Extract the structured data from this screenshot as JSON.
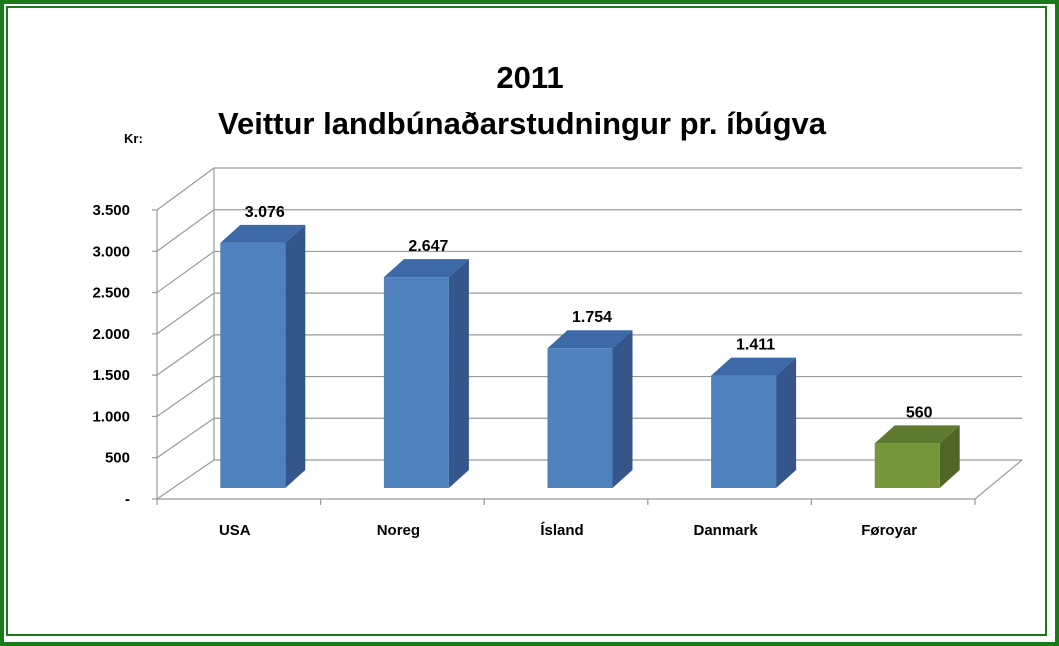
{
  "chart_data": {
    "type": "bar",
    "title": "2011",
    "subtitle": "Veittur landbúnaðarstudningur pr. íbúgva",
    "ylabel": "Kr:",
    "ylim": [
      0,
      3500
    ],
    "yticks": [
      {
        "value": 0,
        "label": "-"
      },
      {
        "value": 500,
        "label": "500"
      },
      {
        "value": 1000,
        "label": "1.000"
      },
      {
        "value": 1500,
        "label": "1.500"
      },
      {
        "value": 2000,
        "label": "2.000"
      },
      {
        "value": 2500,
        "label": "2.500"
      },
      {
        "value": 3000,
        "label": "3.000"
      },
      {
        "value": 3500,
        "label": "3.500"
      }
    ],
    "grid": true,
    "bars": [
      {
        "category": "USA",
        "value": 3076,
        "label": "3.076",
        "color": "#4f81bd",
        "side": "#35568a",
        "top": "#3d69a6"
      },
      {
        "category": "Noreg",
        "value": 2647,
        "label": "2.647",
        "color": "#4f81bd",
        "side": "#35568a",
        "top": "#3d69a6"
      },
      {
        "category": "Ísland",
        "value": 1754,
        "label": "1.754",
        "color": "#4f81bd",
        "side": "#35568a",
        "top": "#3d69a6"
      },
      {
        "category": "Danmark",
        "value": 1411,
        "label": "1.411",
        "color": "#4f81bd",
        "side": "#35568a",
        "top": "#3d69a6"
      },
      {
        "category": "Føroyar",
        "value": 560,
        "label": "560",
        "color": "#77963b",
        "side": "#4f6626",
        "top": "#5f7a2e"
      }
    ]
  }
}
